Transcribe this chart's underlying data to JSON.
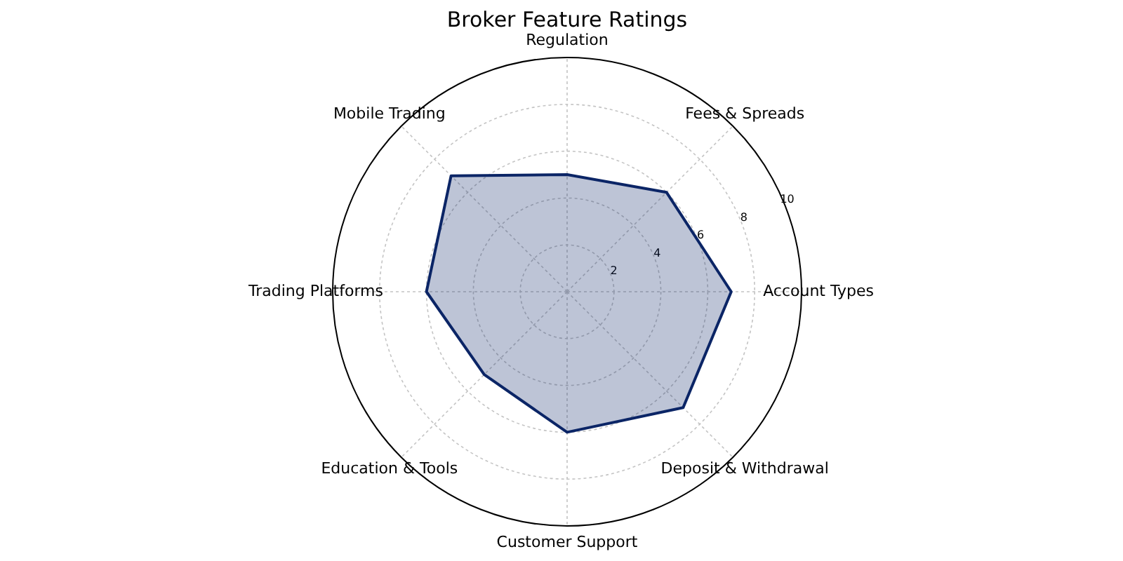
{
  "chart_data": {
    "type": "radar",
    "title": "Broker Feature Ratings",
    "categories": [
      "Regulation",
      "Fees & Spreads",
      "Account Types",
      "Deposit & Withdrawal",
      "Customer Support",
      "Education & Tools",
      "Trading Platforms",
      "Mobile Trading"
    ],
    "series": [
      {
        "color": "#0b2566",
        "values": [
          5,
          6,
          7,
          7,
          6,
          5,
          6,
          7
        ]
      }
    ],
    "ylim": [
      0,
      10
    ],
    "yticks": [
      2,
      4,
      6,
      8,
      10
    ],
    "grid": true
  }
}
